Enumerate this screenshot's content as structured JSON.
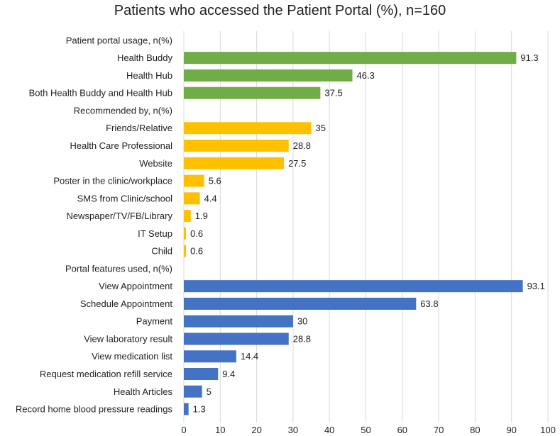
{
  "chart_data": {
    "type": "bar",
    "orientation": "horizontal",
    "title": "Patients who accessed the Patient Portal (%), n=160",
    "xlabel": "",
    "ylabel": "",
    "xlim": [
      0,
      100
    ],
    "xticks": [
      0,
      10,
      20,
      30,
      40,
      50,
      60,
      70,
      80,
      90,
      100
    ],
    "grid": true,
    "colors": {
      "usage": "#70AD47",
      "recommended": "#FFC000",
      "features": "#4472C4"
    },
    "rows": [
      {
        "label": "Patient portal usage, n(%)",
        "value": null,
        "group": "header"
      },
      {
        "label": "Health Buddy",
        "value": 91.3,
        "display": "91.3",
        "group": "usage"
      },
      {
        "label": "Health Hub",
        "value": 46.3,
        "display": "46.3",
        "group": "usage"
      },
      {
        "label": "Both Health Buddy and Health Hub",
        "value": 37.5,
        "display": "37.5",
        "group": "usage"
      },
      {
        "label": "Recommended by, n(%)",
        "value": null,
        "group": "header"
      },
      {
        "label": "Friends/Relative",
        "value": 35,
        "display": "35",
        "group": "recommended"
      },
      {
        "label": "Health Care Professional",
        "value": 28.8,
        "display": "28.8",
        "group": "recommended"
      },
      {
        "label": "Website",
        "value": 27.5,
        "display": "27.5",
        "group": "recommended"
      },
      {
        "label": "Poster in the clinic/workplace",
        "value": 5.6,
        "display": "5.6",
        "group": "recommended"
      },
      {
        "label": "SMS from Clinic/school",
        "value": 4.4,
        "display": "4.4",
        "group": "recommended"
      },
      {
        "label": "Newspaper/TV/FB/Library",
        "value": 1.9,
        "display": "1.9",
        "group": "recommended"
      },
      {
        "label": "IT Setup",
        "value": 0.6,
        "display": "0.6",
        "group": "recommended"
      },
      {
        "label": "Child",
        "value": 0.6,
        "display": "0.6",
        "group": "recommended"
      },
      {
        "label": "Portal features used, n(%)",
        "value": null,
        "group": "header"
      },
      {
        "label": "View Appointment",
        "value": 93.1,
        "display": "93.1",
        "group": "features"
      },
      {
        "label": "Schedule Appointment",
        "value": 63.8,
        "display": "63.8",
        "group": "features"
      },
      {
        "label": "Payment",
        "value": 30,
        "display": "30",
        "group": "features"
      },
      {
        "label": "View laboratory result",
        "value": 28.8,
        "display": "28.8",
        "group": "features"
      },
      {
        "label": "View medication list",
        "value": 14.4,
        "display": "14.4",
        "group": "features"
      },
      {
        "label": "Request medication refill service",
        "value": 9.4,
        "display": "9.4",
        "group": "features"
      },
      {
        "label": "Health Articles",
        "value": 5,
        "display": "5",
        "group": "features"
      },
      {
        "label": "Record home blood pressure readings",
        "value": 1.3,
        "display": "1.3",
        "group": "features"
      }
    ]
  }
}
